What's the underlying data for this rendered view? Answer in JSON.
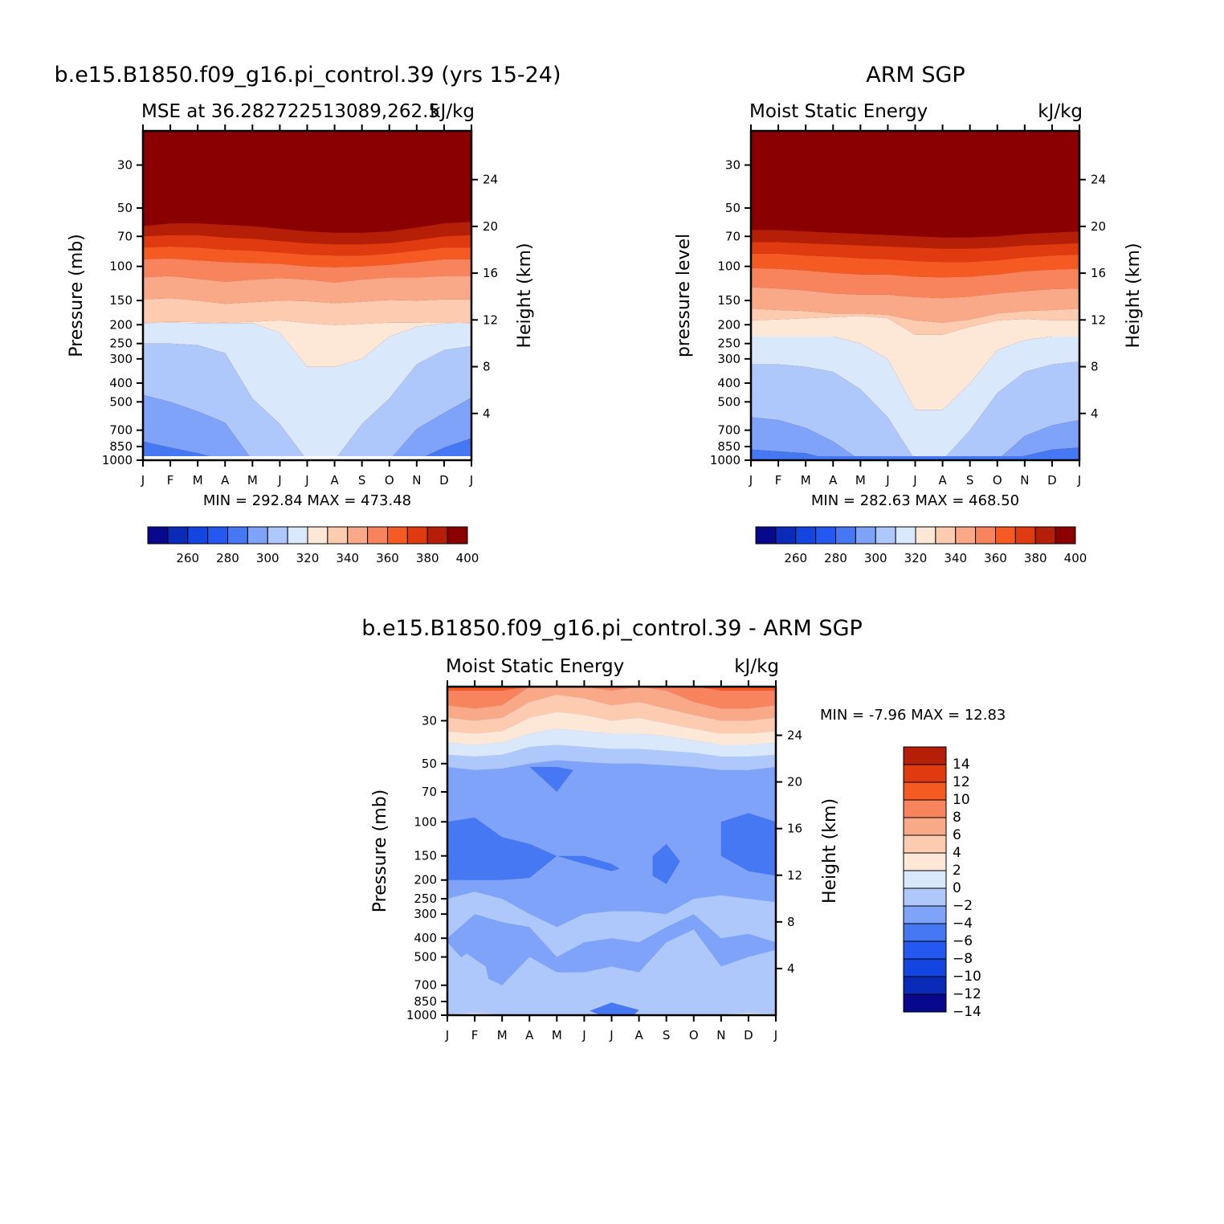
{
  "chart_data": [
    {
      "type": "heatmap",
      "id": "model",
      "main_title": "b.e15.B1850.f09_g16.pi_control.39 (yrs 15-24)",
      "left_subtitle": "MSE at 36.282722513089,262.5",
      "right_subtitle": "kJ/kg",
      "ylabel": "Pressure (mb)",
      "ylabel_right": "Height (km)",
      "x_ticks": [
        "J",
        "F",
        "M",
        "A",
        "M",
        "J",
        "J",
        "A",
        "S",
        "O",
        "N",
        "D",
        "J"
      ],
      "y_ticks": [
        "30",
        "50",
        "70",
        "100",
        "150",
        "200",
        "250",
        "300",
        "400",
        "500",
        "700",
        "850",
        "1000"
      ],
      "y_right_ticks": [
        "24",
        "20",
        "16",
        "12",
        "8",
        "4"
      ],
      "stats": "MIN = 292.84 MAX = 473.48",
      "colorbar_labels": [
        "260",
        "280",
        "300",
        "320",
        "340",
        "360",
        "380",
        "400"
      ],
      "levels": [
        255,
        265,
        275,
        285,
        295,
        305,
        315,
        325,
        335,
        345,
        355,
        365,
        375,
        385,
        395,
        405
      ],
      "level_curves": {
        "405": [
          62,
          60,
          60,
          61,
          62,
          64,
          66,
          67,
          67,
          66,
          63,
          60,
          59
        ],
        "395": [
          70,
          69,
          69,
          71,
          72,
          74,
          76,
          77,
          77,
          76,
          73,
          70,
          69
        ],
        "385": [
          80,
          79,
          80,
          82,
          83,
          85,
          87,
          88,
          88,
          86,
          83,
          80,
          80
        ],
        "375": [
          92,
          91,
          93,
          95,
          96,
          97,
          100,
          101,
          100,
          98,
          95,
          92,
          92
        ],
        "365": [
          114,
          112,
          116,
          120,
          117,
          115,
          117,
          121,
          117,
          114,
          114,
          112,
          112
        ],
        "355": [
          148,
          146,
          150,
          156,
          153,
          150,
          151,
          155,
          152,
          149,
          150,
          148,
          148
        ],
        "345": [
          195,
          193,
          194,
          195,
          193,
          190,
          196,
          201,
          198,
          195,
          195,
          194,
          195
        ],
        "335": [
          196,
          195,
          196,
          196,
          196,
          220,
          330,
          330,
          300,
          230,
          205,
          197,
          196
        ],
        "325": [
          250,
          250,
          255,
          280,
          480,
          650,
          1000,
          1000,
          650,
          480,
          320,
          270,
          258
        ],
        "315": [
          460,
          500,
          560,
          640,
          1000,
          1000,
          1000,
          1000,
          1000,
          1000,
          690,
          570,
          475
        ],
        "305": [
          800,
          860,
          920,
          1000,
          1000,
          1000,
          1000,
          1000,
          1000,
          1000,
          1000,
          860,
          770
        ],
        "295": [
          1000,
          1000,
          1000,
          1000,
          1000,
          1000,
          1000,
          1000,
          1000,
          1000,
          1000,
          1000,
          1000
        ]
      },
      "ylim": [
        20,
        1000
      ]
    },
    {
      "type": "heatmap",
      "id": "obs",
      "main_title": "ARM SGP",
      "left_subtitle": "Moist Static Energy",
      "right_subtitle": "kJ/kg",
      "ylabel": "pressure level",
      "ylabel_right": "Height (km)",
      "x_ticks": [
        "J",
        "F",
        "M",
        "A",
        "M",
        "J",
        "J",
        "A",
        "S",
        "O",
        "N",
        "D",
        "J"
      ],
      "y_ticks": [
        "30",
        "50",
        "70",
        "100",
        "150",
        "200",
        "250",
        "300",
        "400",
        "500",
        "700",
        "850",
        "1000"
      ],
      "y_right_ticks": [
        "24",
        "20",
        "16",
        "12",
        "8",
        "4"
      ],
      "stats": "MIN = 282.63 MAX = 468.50",
      "colorbar_labels": [
        "260",
        "280",
        "300",
        "320",
        "340",
        "360",
        "380",
        "400"
      ],
      "levels": [
        255,
        265,
        275,
        285,
        295,
        305,
        315,
        325,
        335,
        345,
        355,
        365,
        375,
        385,
        395,
        405
      ],
      "level_curves": {
        "405": [
          65,
          65,
          66,
          67,
          68,
          69,
          70,
          71,
          71,
          70,
          68,
          67,
          66
        ],
        "395": [
          75,
          75,
          76,
          77,
          78,
          79,
          80,
          81,
          81,
          80,
          78,
          77,
          76
        ],
        "385": [
          86,
          86,
          88,
          89,
          91,
          92,
          94,
          95,
          95,
          93,
          90,
          88,
          87
        ],
        "375": [
          102,
          103,
          105,
          108,
          110,
          110,
          113,
          114,
          113,
          110,
          106,
          104,
          103
        ],
        "365": [
          128,
          130,
          133,
          138,
          140,
          140,
          144,
          146,
          143,
          138,
          134,
          131,
          130
        ],
        "355": [
          165,
          168,
          170,
          175,
          175,
          178,
          190,
          195,
          188,
          175,
          170,
          168,
          165
        ],
        "345": [
          190,
          188,
          185,
          183,
          180,
          185,
          225,
          225,
          205,
          190,
          187,
          190,
          190
        ],
        "335": [
          230,
          230,
          230,
          230,
          250,
          300,
          550,
          550,
          400,
          270,
          240,
          230,
          230
        ],
        "325": [
          320,
          320,
          330,
          350,
          430,
          600,
          1000,
          1000,
          700,
          450,
          350,
          320,
          310
        ],
        "315": [
          600,
          620,
          680,
          800,
          1000,
          1000,
          1000,
          1000,
          1000,
          1000,
          750,
          660,
          620
        ],
        "305": [
          880,
          900,
          920,
          1000,
          1000,
          1000,
          1000,
          1000,
          1000,
          1000,
          950,
          880,
          860
        ],
        "295": [
          1000,
          1000,
          1000,
          1000,
          1000,
          1000,
          1000,
          1000,
          1000,
          1000,
          1000,
          1000,
          1000
        ]
      },
      "ylim": [
        20,
        1000
      ]
    },
    {
      "type": "heatmap",
      "id": "diff",
      "main_title": "b.e15.B1850.f09_g16.pi_control.39 - ARM SGP",
      "left_subtitle": "Moist Static Energy",
      "right_subtitle": "kJ/kg",
      "ylabel": "Pressure (mb)",
      "ylabel_right": "Height (km)",
      "x_ticks": [
        "J",
        "F",
        "M",
        "A",
        "M",
        "J",
        "J",
        "A",
        "S",
        "O",
        "N",
        "D",
        "J"
      ],
      "y_ticks": [
        "30",
        "50",
        "70",
        "100",
        "150",
        "200",
        "250",
        "300",
        "400",
        "500",
        "700",
        "850",
        "1000"
      ],
      "y_right_ticks": [
        "24",
        "20",
        "16",
        "12",
        "8",
        "4"
      ],
      "stats": "MIN =   -7.96 MAX =   12.83",
      "colorbar_labels": [
        "14",
        "12",
        "10",
        "8",
        "6",
        "4",
        "2",
        "0",
        "−2",
        "−4",
        "−6",
        "−8",
        "−10",
        "−12",
        "−14"
      ],
      "levels": [
        -15,
        -13,
        -11,
        -9,
        -7,
        -5,
        -3,
        -1,
        1,
        3,
        5,
        7,
        9,
        11,
        13,
        15
      ],
      "base_value": -4,
      "top_curves": {
        "9": [
          21,
          21,
          21,
          20,
          20,
          20,
          20,
          20,
          20,
          20,
          21,
          21,
          21
        ],
        "7": [
          25,
          26,
          25,
          20,
          20,
          20,
          21,
          20,
          21,
          24,
          26,
          26,
          25
        ],
        "5": [
          29,
          30,
          29,
          24,
          22,
          23,
          25,
          24,
          26,
          28,
          30,
          30,
          29
        ],
        "3": [
          34,
          35,
          34,
          29,
          27,
          28,
          30,
          29,
          31,
          33,
          35,
          35,
          34
        ],
        "1": [
          39,
          40,
          39,
          35,
          33,
          34,
          35,
          35,
          36,
          38,
          40,
          40,
          39
        ],
        "-1": [
          45,
          46,
          45,
          41,
          40,
          41,
          42,
          42,
          43,
          44,
          46,
          46,
          45
        ],
        "-3": [
          52,
          54,
          53,
          50,
          48,
          49,
          50,
          50,
          51,
          52,
          54,
          54,
          52
        ]
      },
      "regions": [
        {
          "value": -6,
          "curve": [
            [
              0,
              100
            ],
            [
              1,
              95
            ],
            [
              2,
              120
            ],
            [
              3,
              130
            ],
            [
              4,
              150
            ],
            [
              5,
              165
            ],
            [
              6,
              180
            ],
            [
              6.3,
              175
            ],
            [
              6,
              165
            ],
            [
              5,
              150
            ],
            [
              4,
              150
            ],
            [
              3,
              195
            ],
            [
              2,
              200
            ],
            [
              1,
              200
            ],
            [
              0,
              200
            ]
          ]
        },
        {
          "value": -6,
          "curve": [
            [
              10,
              100
            ],
            [
              11,
              90
            ],
            [
              12,
              100
            ],
            [
              12,
              190
            ],
            [
              11,
              180
            ],
            [
              10,
              150
            ]
          ]
        },
        {
          "value": -6,
          "curve": [
            [
              7.5,
              150
            ],
            [
              8,
              130
            ],
            [
              8.5,
              160
            ],
            [
              8,
              210
            ],
            [
              7.5,
              190
            ]
          ]
        },
        {
          "value": -6,
          "curve": [
            [
              3,
              52
            ],
            [
              4,
              52
            ],
            [
              4.6,
              54
            ],
            [
              4,
              70
            ],
            [
              3.6,
              62
            ]
          ]
        },
        {
          "value": -2,
          "curve": [
            [
              0,
              570
            ],
            [
              0.7,
              480
            ],
            [
              1.4,
              560
            ],
            [
              1.6,
              750
            ],
            [
              1.2,
              920
            ],
            [
              0.5,
              960
            ],
            [
              0,
              900
            ]
          ]
        },
        {
          "value": -2,
          "curve": [
            [
              10.7,
              680
            ],
            [
              11.3,
              520
            ],
            [
              11.9,
              650
            ],
            [
              11.6,
              900
            ],
            [
              11,
              920
            ]
          ]
        },
        {
          "value": -2,
          "curve": [
            [
              7.6,
              800
            ],
            [
              8.0,
              530
            ],
            [
              8.4,
              820
            ],
            [
              8.2,
              990
            ],
            [
              7.8,
              990
            ]
          ]
        },
        {
          "value": -6,
          "curve": [
            [
              5.2,
              950
            ],
            [
              6,
              860
            ],
            [
              7,
              940
            ],
            [
              6.8,
              1000
            ],
            [
              5.6,
              1000
            ]
          ]
        },
        {
          "value": 1,
          "curve": [
            [
              0,
              990
            ],
            [
              1,
              975
            ],
            [
              2,
              990
            ],
            [
              2,
              1000
            ],
            [
              0,
              1000
            ]
          ]
        },
        {
          "value": 1,
          "curve": [
            [
              10,
              990
            ],
            [
              11,
              975
            ],
            [
              12,
              985
            ],
            [
              12,
              1000
            ],
            [
              10,
              1000
            ]
          ]
        }
      ],
      "ylim": [
        20,
        1000
      ]
    }
  ],
  "colors": {
    "scale": [
      "#08088c",
      "#0a2ab8",
      "#1346e0",
      "#2458f0",
      "#4678f4",
      "#7ea3f8",
      "#afc8fb",
      "#d9e8fb",
      "#fde8d8",
      "#fccbb0",
      "#f9a888",
      "#f8845e",
      "#f55a22",
      "#e03a10",
      "#b51f07",
      "#8a0000"
    ]
  }
}
